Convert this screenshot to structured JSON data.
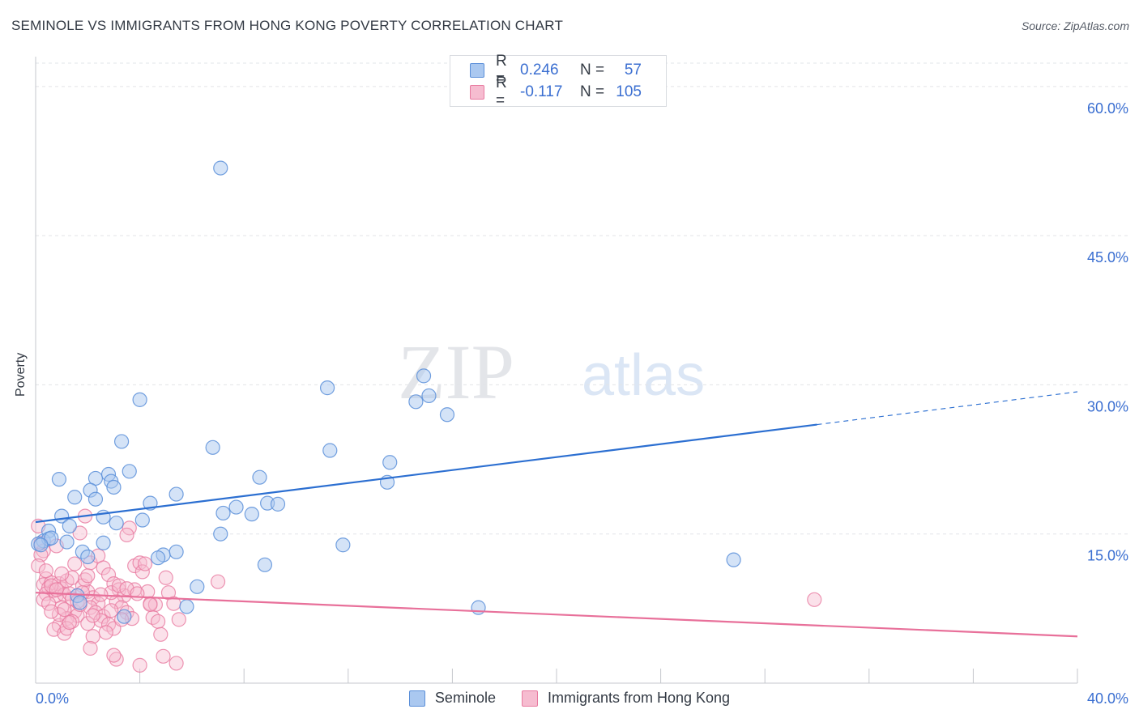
{
  "title": "SEMINOLE VS IMMIGRANTS FROM HONG KONG POVERTY CORRELATION CHART",
  "source": "Source: ZipAtlas.com",
  "watermark": {
    "zip": "ZIP",
    "atlas": "atlas"
  },
  "colors": {
    "seminole_fill": "#aac8f0",
    "seminole_stroke": "#5b8fd9",
    "seminole_line": "#2c6fd1",
    "hk_fill": "#f6bcd0",
    "hk_stroke": "#e87aa0",
    "hk_line": "#e8709a",
    "tick_label": "#3b6fd1",
    "grid": "#e2e4e8"
  },
  "legend": {
    "rows": [
      {
        "r_label": "R =",
        "r_value": "0.246",
        "n_label": "N =",
        "n_value": "57"
      },
      {
        "r_label": "R =",
        "r_value": "-0.117",
        "n_label": "N =",
        "n_value": "105"
      }
    ]
  },
  "bottom_legend": [
    "Seminole",
    "Immigrants from Hong Kong"
  ],
  "chart_data": {
    "type": "scatter",
    "title": "SEMINOLE VS IMMIGRANTS FROM HONG KONG POVERTY CORRELATION CHART",
    "xlabel": "",
    "ylabel": "Poverty",
    "xlim": [
      0,
      40
    ],
    "ylim": [
      0,
      63
    ],
    "x_tick_labels": [
      "0.0%",
      "40.0%"
    ],
    "y_ticks": [
      15,
      30,
      45,
      60
    ],
    "y_tick_labels": [
      "15.0%",
      "30.0%",
      "45.0%",
      "60.0%"
    ],
    "grid": true,
    "legend_position": "top-center",
    "series": [
      {
        "name": "Seminole",
        "r": 0.246,
        "n": 57,
        "trend": {
          "x": [
            0,
            30
          ],
          "y": [
            16.2,
            26.0
          ],
          "dashed_to": [
            40,
            29.3
          ]
        },
        "points": [
          [
            7.1,
            51.8
          ],
          [
            4.0,
            28.5
          ],
          [
            11.2,
            29.7
          ],
          [
            14.9,
            30.9
          ],
          [
            14.6,
            28.3
          ],
          [
            15.1,
            28.9
          ],
          [
            15.8,
            27.0
          ],
          [
            3.3,
            24.3
          ],
          [
            6.8,
            23.7
          ],
          [
            11.3,
            23.4
          ],
          [
            13.6,
            22.2
          ],
          [
            13.5,
            20.2
          ],
          [
            8.6,
            20.7
          ],
          [
            0.9,
            20.5
          ],
          [
            2.3,
            20.6
          ],
          [
            2.8,
            21.0
          ],
          [
            3.6,
            21.3
          ],
          [
            2.9,
            20.3
          ],
          [
            3.0,
            19.7
          ],
          [
            2.1,
            19.4
          ],
          [
            1.5,
            18.7
          ],
          [
            2.3,
            18.5
          ],
          [
            4.4,
            18.1
          ],
          [
            5.4,
            19.0
          ],
          [
            7.7,
            17.7
          ],
          [
            8.9,
            18.1
          ],
          [
            9.3,
            18.0
          ],
          [
            7.2,
            17.1
          ],
          [
            8.3,
            17.0
          ],
          [
            1.0,
            16.8
          ],
          [
            2.6,
            16.7
          ],
          [
            3.1,
            16.1
          ],
          [
            4.1,
            16.4
          ],
          [
            1.3,
            15.8
          ],
          [
            0.5,
            15.3
          ],
          [
            0.3,
            14.3
          ],
          [
            0.5,
            14.5
          ],
          [
            0.1,
            14.0
          ],
          [
            1.2,
            14.2
          ],
          [
            2.6,
            14.1
          ],
          [
            7.1,
            15.0
          ],
          [
            11.8,
            13.9
          ],
          [
            1.8,
            13.2
          ],
          [
            5.4,
            13.2
          ],
          [
            4.9,
            12.9
          ],
          [
            2.0,
            12.7
          ],
          [
            4.7,
            12.6
          ],
          [
            8.8,
            11.9
          ],
          [
            26.8,
            12.4
          ],
          [
            6.2,
            9.7
          ],
          [
            1.6,
            8.8
          ],
          [
            1.7,
            8.1
          ],
          [
            5.8,
            7.7
          ],
          [
            17.0,
            7.6
          ],
          [
            3.4,
            6.7
          ],
          [
            0.6,
            14.6
          ],
          [
            0.2,
            13.9
          ]
        ]
      },
      {
        "name": "Immigrants from Hong Kong",
        "r": -0.117,
        "n": 105,
        "trend": {
          "x": [
            0,
            40
          ],
          "y": [
            9.1,
            4.7
          ]
        },
        "points": [
          [
            0.1,
            15.8
          ],
          [
            0.2,
            14.1
          ],
          [
            0.3,
            13.3
          ],
          [
            0.2,
            12.9
          ],
          [
            0.1,
            11.8
          ],
          [
            0.4,
            10.5
          ],
          [
            0.3,
            9.9
          ],
          [
            0.5,
            9.6
          ],
          [
            0.6,
            10.1
          ],
          [
            0.7,
            9.3
          ],
          [
            0.4,
            9.0
          ],
          [
            0.8,
            8.8
          ],
          [
            0.3,
            8.4
          ],
          [
            0.9,
            10.0
          ],
          [
            1.0,
            9.5
          ],
          [
            1.1,
            8.9
          ],
          [
            1.2,
            10.3
          ],
          [
            0.6,
            9.8
          ],
          [
            0.8,
            9.4
          ],
          [
            1.3,
            9.0
          ],
          [
            1.4,
            8.5
          ],
          [
            0.5,
            8.0
          ],
          [
            1.0,
            7.6
          ],
          [
            1.5,
            7.2
          ],
          [
            1.6,
            6.8
          ],
          [
            1.2,
            6.5
          ],
          [
            1.4,
            6.2
          ],
          [
            0.9,
            5.8
          ],
          [
            0.7,
            5.4
          ],
          [
            1.1,
            5.0
          ],
          [
            1.8,
            9.8
          ],
          [
            2.0,
            9.2
          ],
          [
            2.2,
            8.6
          ],
          [
            2.4,
            8.0
          ],
          [
            2.1,
            7.6
          ],
          [
            2.3,
            7.1
          ],
          [
            2.6,
            6.7
          ],
          [
            2.5,
            6.3
          ],
          [
            2.8,
            5.9
          ],
          [
            3.0,
            5.5
          ],
          [
            2.7,
            5.1
          ],
          [
            2.2,
            4.7
          ],
          [
            1.9,
            16.8
          ],
          [
            1.7,
            15.1
          ],
          [
            1.9,
            10.4
          ],
          [
            2.1,
            12.1
          ],
          [
            2.4,
            12.8
          ],
          [
            2.6,
            11.6
          ],
          [
            2.8,
            10.9
          ],
          [
            3.0,
            10.0
          ],
          [
            3.2,
            9.4
          ],
          [
            3.4,
            8.8
          ],
          [
            3.1,
            8.2
          ],
          [
            3.3,
            7.6
          ],
          [
            3.5,
            7.1
          ],
          [
            3.7,
            6.5
          ],
          [
            3.6,
            15.6
          ],
          [
            3.5,
            14.9
          ],
          [
            3.8,
            11.8
          ],
          [
            4.0,
            12.1
          ],
          [
            4.1,
            11.2
          ],
          [
            4.3,
            9.2
          ],
          [
            4.4,
            8.0
          ],
          [
            4.6,
            7.9
          ],
          [
            4.5,
            6.6
          ],
          [
            4.7,
            6.2
          ],
          [
            4.8,
            4.9
          ],
          [
            5.0,
            10.6
          ],
          [
            5.1,
            9.1
          ],
          [
            5.3,
            8.0
          ],
          [
            5.5,
            6.4
          ],
          [
            5.4,
            2.0
          ],
          [
            4.9,
            2.7
          ],
          [
            4.0,
            1.8
          ],
          [
            3.1,
            2.4
          ],
          [
            3.0,
            2.8
          ],
          [
            2.1,
            3.5
          ],
          [
            1.2,
            5.5
          ],
          [
            7.0,
            10.2
          ],
          [
            3.8,
            9.4
          ],
          [
            2.9,
            9.1
          ],
          [
            3.2,
            9.8
          ],
          [
            3.5,
            9.5
          ],
          [
            4.2,
            12.0
          ],
          [
            1.5,
            12.0
          ],
          [
            1.8,
            9.1
          ],
          [
            2.0,
            6.0
          ],
          [
            1.3,
            6.1
          ],
          [
            0.9,
            6.9
          ],
          [
            1.6,
            8.2
          ],
          [
            2.5,
            8.9
          ],
          [
            3.9,
            9.0
          ],
          [
            4.4,
            7.9
          ],
          [
            2.2,
            6.8
          ],
          [
            1.1,
            7.4
          ],
          [
            1.7,
            7.9
          ],
          [
            0.6,
            7.2
          ],
          [
            2.9,
            7.3
          ],
          [
            3.3,
            6.4
          ],
          [
            1.4,
            10.6
          ],
          [
            2.0,
            10.8
          ],
          [
            0.8,
            13.8
          ],
          [
            29.9,
            8.4
          ],
          [
            0.4,
            11.3
          ],
          [
            1.0,
            11.0
          ]
        ]
      }
    ]
  }
}
